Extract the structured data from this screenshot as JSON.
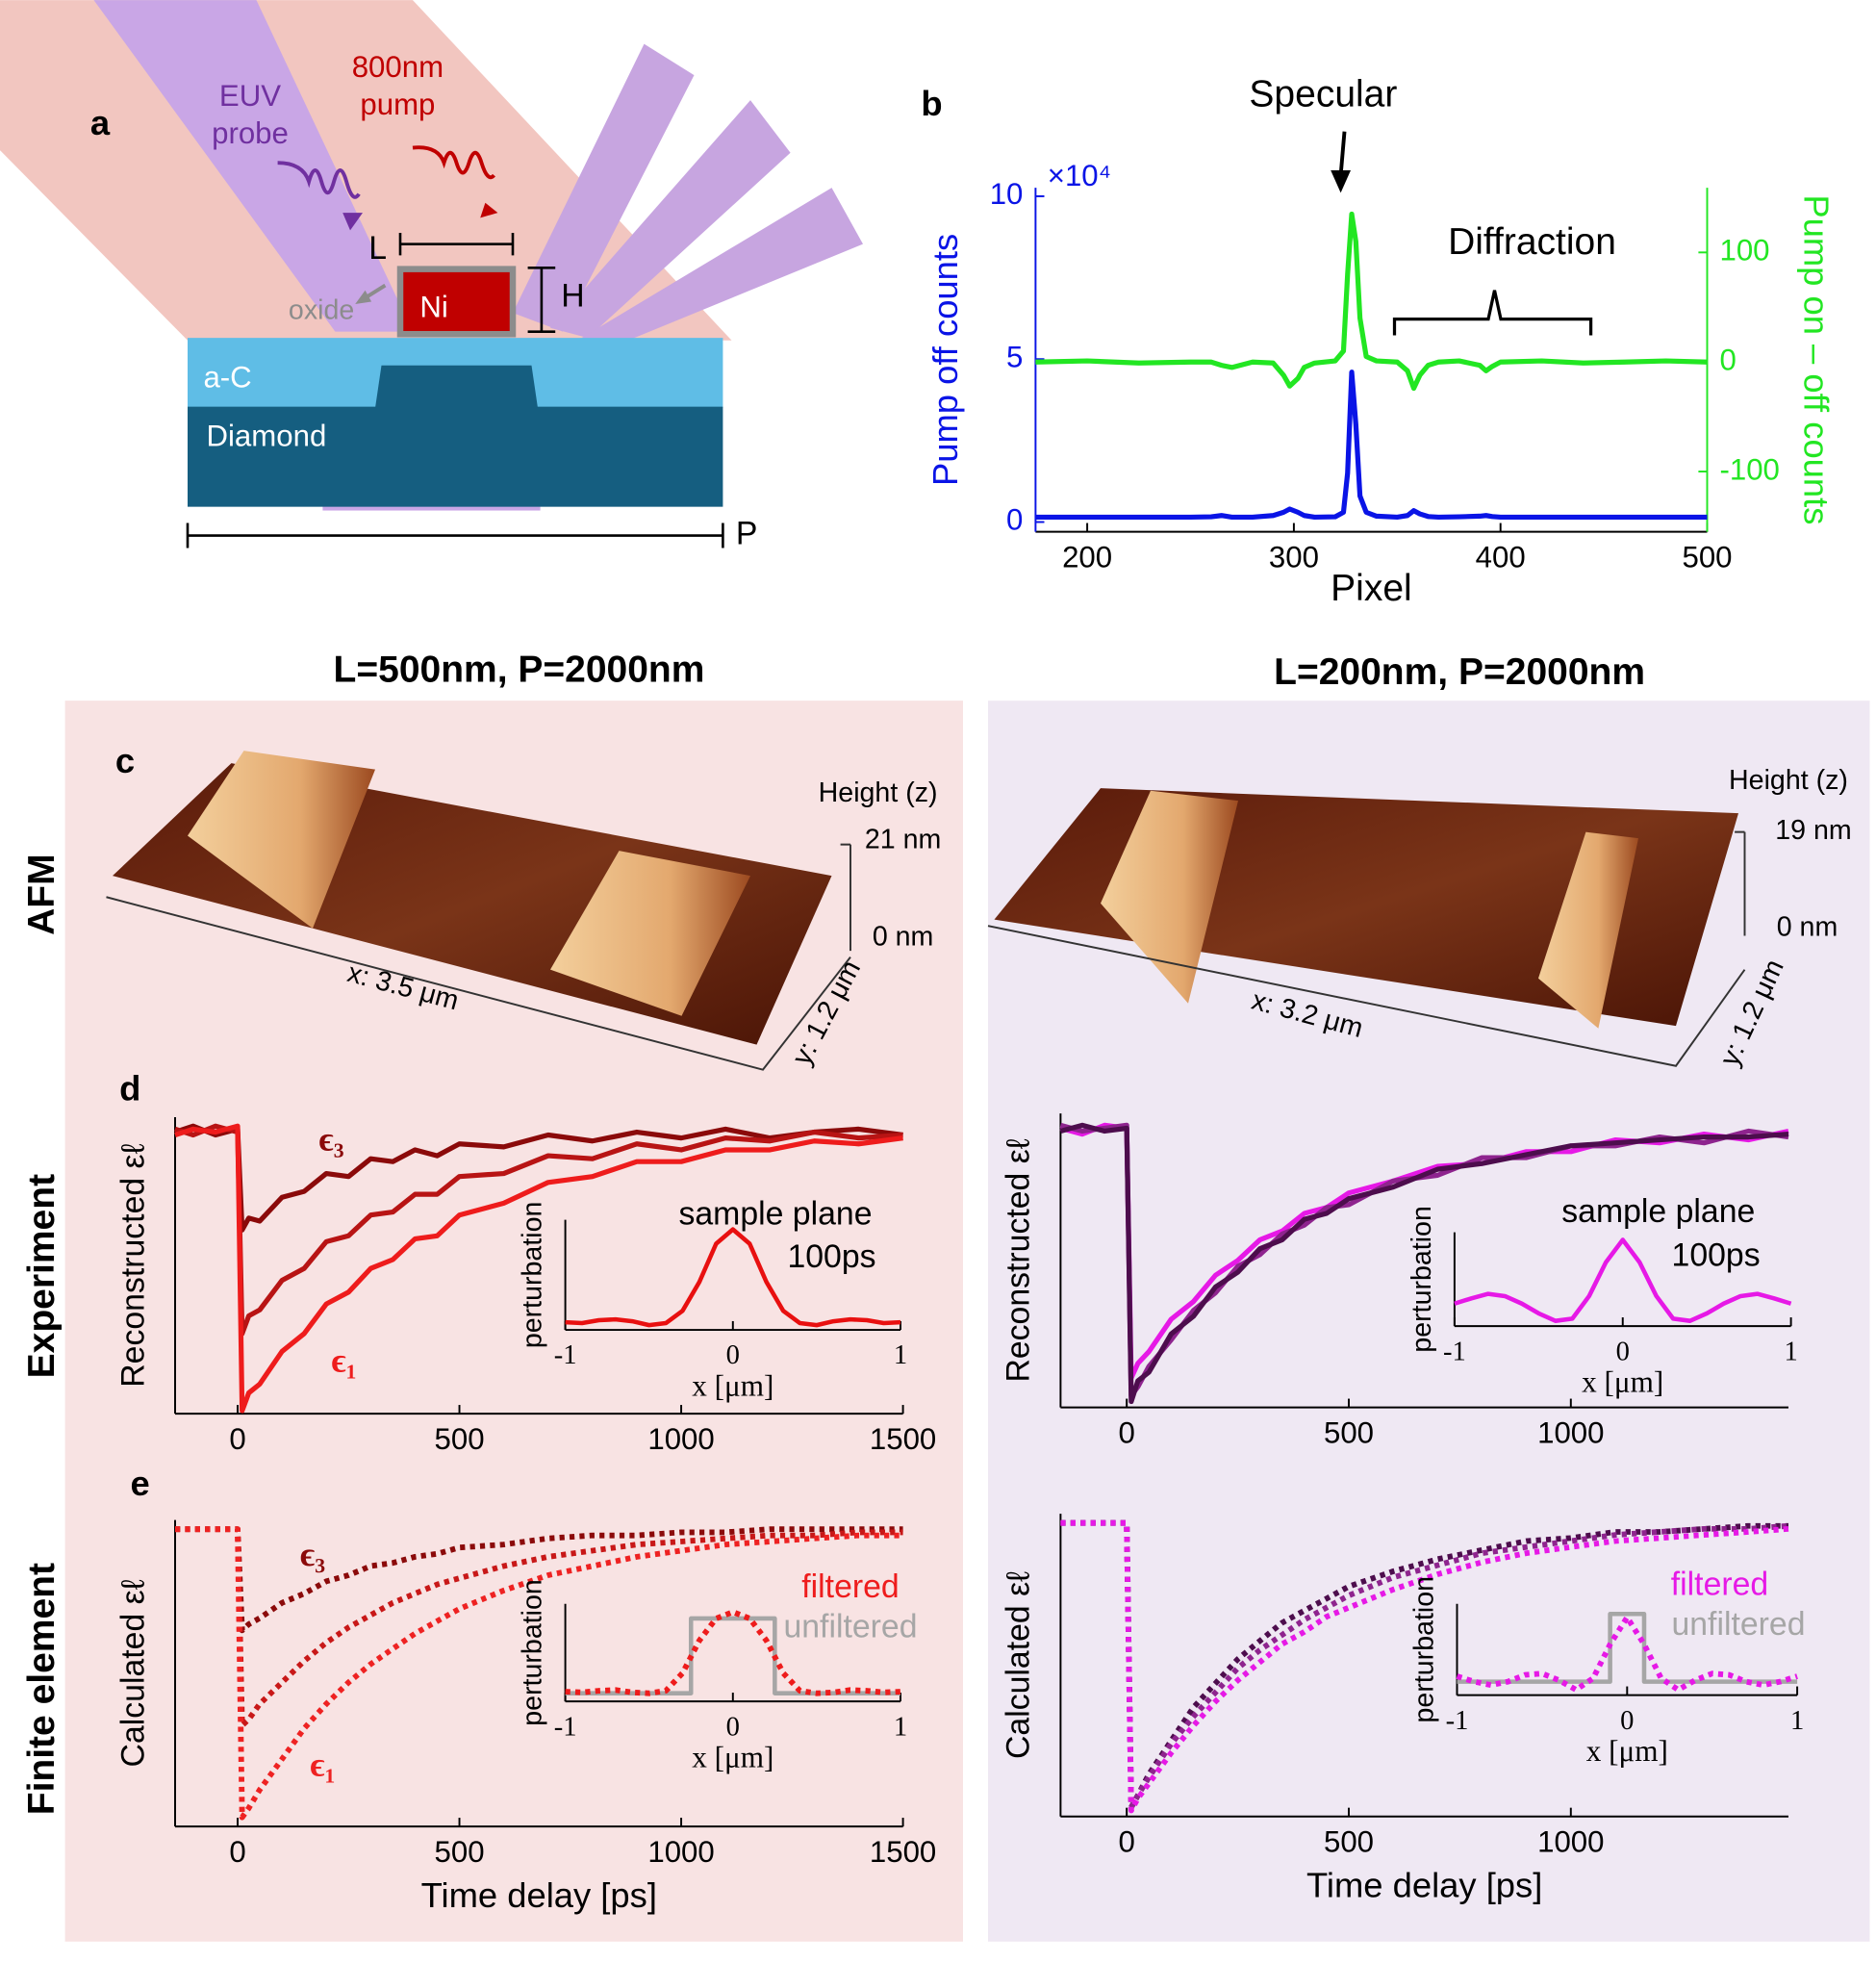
{
  "panels": [
    "a",
    "b",
    "c",
    "d",
    "e"
  ],
  "headers": [
    "L=500nm, P=2000nm",
    "L=200nm, P=2000nm"
  ],
  "row_labels": [
    "AFM",
    "Experiment",
    "Finite element"
  ],
  "diagram": {
    "probe": [
      "EUV",
      "probe"
    ],
    "pump": [
      "800nm",
      "pump"
    ],
    "L": "L",
    "H": "H",
    "Ni": "Ni",
    "oxide": "oxide",
    "aC": "a-C",
    "diamond": "Diamond",
    "P": "P"
  },
  "afm": [
    {
      "height_label": "Height (z)",
      "zmax": "21 nm",
      "zmin": "0 nm",
      "x_label": "x: 3.5 μm",
      "y_label": "y: 1.2 μm"
    },
    {
      "height_label": "Height (z)",
      "zmax": "19 nm",
      "zmin": "0 nm",
      "x_label": "x: 3.2 μm",
      "y_label": "y: 1.2 μm"
    }
  ],
  "chart_data": [
    {
      "type": "line",
      "xlabel": "Pixel",
      "ylabel": "Pump off counts",
      "y2label": "Pump on – off counts",
      "y_exponent": "×10⁴",
      "annotations": [
        "Specular",
        "Diffraction"
      ],
      "x": [
        175,
        200,
        225,
        250,
        260,
        265,
        270,
        280,
        290,
        295,
        298,
        302,
        305,
        310,
        320,
        324,
        326,
        328,
        330,
        332,
        335,
        340,
        350,
        355,
        358,
        361,
        365,
        370,
        380,
        390,
        393,
        396,
        400,
        420,
        440,
        460,
        480,
        500
      ],
      "series": [
        {
          "color": "#0a14e6",
          "values": [
            1500,
            1500,
            1500,
            1500,
            1600,
            2000,
            1500,
            1500,
            2000,
            3000,
            4000,
            3000,
            2000,
            1500,
            1600,
            3000,
            15000,
            46000,
            30000,
            8000,
            3000,
            1800,
            1500,
            2000,
            3500,
            2500,
            1700,
            1500,
            1600,
            1800,
            2000,
            1700,
            1500,
            1500,
            1500,
            1500,
            1500,
            1500
          ]
        },
        {
          "color": "#22e622",
          "axis": "y2",
          "values": [
            0,
            1,
            -1,
            0,
            0,
            -3,
            -5,
            0,
            -1,
            -12,
            -22,
            -15,
            -5,
            -1,
            1,
            10,
            80,
            135,
            110,
            40,
            5,
            1,
            0,
            -8,
            -24,
            -12,
            -3,
            0,
            1,
            -3,
            -8,
            -4,
            0,
            1,
            -1,
            0,
            1,
            0
          ]
        }
      ],
      "xlim": [
        175,
        500
      ],
      "xticks": [
        200,
        300,
        400,
        500
      ],
      "ylim": [
        -3000,
        102600
      ],
      "yticks": [
        0,
        {
          "value": 50000,
          "label": "5"
        },
        {
          "value": 100000,
          "label": "10"
        }
      ],
      "y2lim": [
        -155,
        159
      ],
      "y2ticks": [
        -100,
        0,
        100
      ]
    },
    {
      "type": "line",
      "ylabel": "Reconstructed εℓ",
      "x": [
        -141,
        -100,
        -50,
        0,
        10,
        25,
        50,
        100,
        150,
        200,
        250,
        300,
        350,
        400,
        450,
        500,
        600,
        700,
        800,
        900,
        1000,
        1100,
        1200,
        1300,
        1400,
        1500
      ],
      "series": [
        {
          "name": "ϵ₃",
          "color": "#8b0a0a",
          "values": [
            0.95,
            0.97,
            0.94,
            0.96,
            0.62,
            0.66,
            0.65,
            0.73,
            0.75,
            0.81,
            0.8,
            0.86,
            0.85,
            0.89,
            0.87,
            0.91,
            0.9,
            0.94,
            0.92,
            0.95,
            0.93,
            0.96,
            0.93,
            0.95,
            0.96,
            0.94
          ]
        },
        {
          "color": "#b81414",
          "values": [
            0.96,
            0.94,
            0.97,
            0.95,
            0.27,
            0.33,
            0.35,
            0.45,
            0.49,
            0.58,
            0.6,
            0.67,
            0.68,
            0.74,
            0.74,
            0.8,
            0.81,
            0.87,
            0.86,
            0.91,
            0.89,
            0.93,
            0.92,
            0.95,
            0.93,
            0.94
          ]
        },
        {
          "name": "ϵ₁",
          "color": "#ee1c1c",
          "values": [
            0.94,
            0.96,
            0.95,
            0.97,
            0.01,
            0.07,
            0.1,
            0.21,
            0.27,
            0.37,
            0.41,
            0.49,
            0.52,
            0.59,
            0.6,
            0.67,
            0.71,
            0.78,
            0.8,
            0.85,
            0.85,
            0.89,
            0.89,
            0.92,
            0.91,
            0.93
          ]
        }
      ],
      "xlim": [
        -141,
        1500
      ],
      "xticks": [
        0,
        500,
        1000,
        1500
      ],
      "ylim": [
        0,
        1
      ]
    },
    {
      "type": "line",
      "ylabel": "perturbation",
      "xlabel": "x [μm]",
      "annotations": [
        "sample plane",
        "100ps"
      ],
      "x": [
        -1,
        -0.9,
        -0.8,
        -0.7,
        -0.6,
        -0.5,
        -0.4,
        -0.3,
        -0.2,
        -0.1,
        0,
        0.1,
        0.2,
        0.3,
        0.4,
        0.5,
        0.6,
        0.7,
        0.8,
        0.9,
        1
      ],
      "series": [
        {
          "color": "#e81010",
          "values": [
            0.03,
            0.02,
            0.05,
            0.06,
            0.04,
            0,
            0.02,
            0.15,
            0.45,
            0.85,
            1,
            0.85,
            0.45,
            0.15,
            0.02,
            0,
            0.04,
            0.06,
            0.05,
            0.02,
            0.03
          ]
        }
      ],
      "xlim": [
        -1,
        1
      ],
      "xticks": [
        -1,
        0,
        1
      ],
      "ylim": [
        -0.05,
        1.1
      ]
    },
    {
      "type": "line",
      "ylabel": "Reconstructed εℓ",
      "x": [
        -149,
        -100,
        -50,
        0,
        10,
        25,
        50,
        100,
        150,
        200,
        250,
        300,
        350,
        400,
        450,
        500,
        600,
        700,
        800,
        900,
        1000,
        1100,
        1200,
        1300,
        1400,
        1490
      ],
      "series": [
        {
          "color": "#e619e6",
          "values": [
            0.95,
            0.93,
            0.96,
            0.95,
            0.1,
            0.15,
            0.19,
            0.3,
            0.36,
            0.45,
            0.5,
            0.57,
            0.6,
            0.66,
            0.68,
            0.73,
            0.77,
            0.82,
            0.83,
            0.87,
            0.87,
            0.91,
            0.9,
            0.93,
            0.91,
            0.94
          ]
        },
        {
          "color": "#8e248e",
          "values": [
            0.96,
            0.94,
            0.95,
            0.96,
            0.04,
            0.07,
            0.14,
            0.23,
            0.33,
            0.39,
            0.48,
            0.52,
            0.59,
            0.62,
            0.68,
            0.69,
            0.77,
            0.79,
            0.85,
            0.85,
            0.89,
            0.89,
            0.92,
            0.9,
            0.94,
            0.92
          ]
        },
        {
          "color": "#4d0d4d",
          "values": [
            0.94,
            0.96,
            0.94,
            0.95,
            0.02,
            0.09,
            0.12,
            0.25,
            0.31,
            0.41,
            0.46,
            0.54,
            0.57,
            0.64,
            0.66,
            0.71,
            0.75,
            0.81,
            0.83,
            0.86,
            0.89,
            0.9,
            0.91,
            0.92,
            0.92,
            0.93
          ]
        }
      ],
      "xlim": [
        -149,
        1490
      ],
      "xticks": [
        0,
        500,
        1000
      ],
      "ylim": [
        0,
        1
      ]
    },
    {
      "type": "line",
      "ylabel": "perturbation",
      "xlabel": "x [μm]",
      "annotations": [
        "sample plane",
        "100ps"
      ],
      "x": [
        -1,
        -0.9,
        -0.8,
        -0.7,
        -0.6,
        -0.5,
        -0.4,
        -0.3,
        -0.2,
        -0.1,
        0,
        0.1,
        0.2,
        0.3,
        0.4,
        0.5,
        0.6,
        0.7,
        0.8,
        0.9,
        1
      ],
      "series": [
        {
          "color": "#e619e6",
          "values": [
            0.15,
            0.22,
            0.28,
            0.25,
            0.15,
            0.02,
            -0.08,
            -0.05,
            0.25,
            0.7,
            1,
            0.7,
            0.25,
            -0.05,
            -0.08,
            0.02,
            0.15,
            0.25,
            0.28,
            0.22,
            0.15
          ]
        }
      ],
      "xlim": [
        -1,
        1
      ],
      "xticks": [
        -1,
        0,
        1
      ],
      "ylim": [
        -0.15,
        1.1
      ]
    },
    {
      "type": "line",
      "ylabel": "Calculated εℓ",
      "xlabel": "Time delay [ps]",
      "x": [
        -141,
        -100,
        -50,
        0,
        10,
        25,
        50,
        100,
        150,
        200,
        250,
        300,
        350,
        400,
        450,
        500,
        600,
        700,
        800,
        900,
        1000,
        1100,
        1200,
        1300,
        1400,
        1500
      ],
      "series": [
        {
          "name": "ϵ₃",
          "color": "#8b0a0a",
          "line_style": "dotted",
          "values": [
            0.97,
            0.97,
            0.97,
            0.97,
            0.64,
            0.66,
            0.68,
            0.73,
            0.76,
            0.8,
            0.82,
            0.85,
            0.86,
            0.88,
            0.89,
            0.91,
            0.92,
            0.94,
            0.95,
            0.95,
            0.96,
            0.96,
            0.97,
            0.97,
            0.97,
            0.97
          ]
        },
        {
          "color": "#c81818",
          "line_style": "dotted",
          "values": [
            0.97,
            0.97,
            0.97,
            0.97,
            0.33,
            0.35,
            0.4,
            0.47,
            0.54,
            0.6,
            0.65,
            0.69,
            0.73,
            0.76,
            0.79,
            0.81,
            0.85,
            0.88,
            0.9,
            0.92,
            0.93,
            0.94,
            0.95,
            0.95,
            0.96,
            0.96
          ]
        },
        {
          "name": "ϵ₁",
          "color": "#ee2222",
          "line_style": "dotted",
          "values": [
            0.97,
            0.97,
            0.97,
            0.97,
            0.03,
            0.06,
            0.12,
            0.22,
            0.32,
            0.4,
            0.47,
            0.53,
            0.58,
            0.63,
            0.67,
            0.71,
            0.77,
            0.82,
            0.85,
            0.88,
            0.9,
            0.92,
            0.93,
            0.94,
            0.95,
            0.95
          ]
        }
      ],
      "xlim": [
        -141,
        1500
      ],
      "xticks": [
        0,
        500,
        1000,
        1500
      ],
      "ylim": [
        0,
        1
      ]
    },
    {
      "type": "line",
      "ylabel": "perturbation",
      "xlabel": "x [μm]",
      "x": [
        -1,
        -0.9,
        -0.8,
        -0.7,
        -0.6,
        -0.5,
        -0.4,
        -0.3,
        -0.25,
        -0.25,
        -0.2,
        -0.1,
        0,
        0.1,
        0.2,
        0.25,
        0.25,
        0.3,
        0.4,
        0.5,
        0.6,
        0.7,
        0.8,
        0.9,
        1
      ],
      "series": [
        {
          "name": "unfiltered",
          "color": "#a6a6a6",
          "values": [
            0,
            0,
            0,
            0,
            0,
            0,
            0,
            0,
            0,
            0.92,
            0.92,
            0.92,
            0.92,
            0.92,
            0.92,
            0.92,
            0,
            0,
            0,
            0,
            0,
            0,
            0,
            0,
            0
          ]
        },
        {
          "name": "filtered",
          "color": "#ee1c1c",
          "line_style": "dotted",
          "values": [
            0.02,
            0.01,
            0.03,
            0.04,
            0.01,
            0,
            0.03,
            0.25,
            0.45,
            0.45,
            0.65,
            0.92,
            1,
            0.92,
            0.65,
            0.45,
            0.45,
            0.25,
            0.03,
            0,
            0.01,
            0.04,
            0.03,
            0.01,
            0.02
          ]
        }
      ],
      "xlim": [
        -1,
        1
      ],
      "xticks": [
        -1,
        0,
        1
      ],
      "ylim": [
        -0.1,
        1.1
      ]
    },
    {
      "type": "line",
      "ylabel": "Calculated εℓ",
      "xlabel": "Time delay [ps]",
      "x": [
        -149,
        -100,
        -50,
        0,
        10,
        25,
        50,
        100,
        150,
        200,
        250,
        300,
        350,
        400,
        450,
        500,
        600,
        700,
        800,
        900,
        1000,
        1100,
        1200,
        1300,
        1400,
        1490
      ],
      "series": [
        {
          "color": "#4d0d4d",
          "line_style": "dotted",
          "values": [
            0.97,
            0.97,
            0.97,
            0.97,
            0.03,
            0.07,
            0.14,
            0.25,
            0.36,
            0.44,
            0.52,
            0.58,
            0.64,
            0.68,
            0.72,
            0.76,
            0.81,
            0.85,
            0.88,
            0.91,
            0.92,
            0.94,
            0.94,
            0.95,
            0.96,
            0.96
          ]
        },
        {
          "color": "#8e248e",
          "line_style": "dotted",
          "values": [
            0.97,
            0.97,
            0.97,
            0.97,
            0.03,
            0.07,
            0.13,
            0.24,
            0.33,
            0.41,
            0.49,
            0.55,
            0.6,
            0.65,
            0.69,
            0.73,
            0.79,
            0.83,
            0.87,
            0.89,
            0.91,
            0.93,
            0.94,
            0.95,
            0.95,
            0.96
          ]
        },
        {
          "color": "#e619e6",
          "line_style": "dotted",
          "values": [
            0.97,
            0.97,
            0.97,
            0.97,
            0.02,
            0.06,
            0.11,
            0.21,
            0.3,
            0.38,
            0.45,
            0.51,
            0.57,
            0.61,
            0.66,
            0.69,
            0.75,
            0.8,
            0.84,
            0.87,
            0.89,
            0.91,
            0.92,
            0.93,
            0.94,
            0.95
          ]
        }
      ],
      "xlim": [
        -149,
        1490
      ],
      "xticks": [
        0,
        500,
        1000
      ],
      "ylim": [
        0,
        1
      ]
    },
    {
      "type": "line",
      "ylabel": "perturbation",
      "xlabel": "x [μm]",
      "x": [
        -1,
        -0.9,
        -0.8,
        -0.7,
        -0.6,
        -0.5,
        -0.4,
        -0.3,
        -0.2,
        -0.1,
        -0.1,
        0,
        0.1,
        0.1,
        0.2,
        0.3,
        0.4,
        0.5,
        0.6,
        0.7,
        0.8,
        0.9,
        1
      ],
      "series": [
        {
          "name": "unfiltered",
          "color": "#a6a6a6",
          "values": [
            0,
            0,
            0,
            0,
            0,
            0,
            0,
            0,
            0,
            0,
            1,
            1,
            1,
            0,
            0,
            0,
            0,
            0,
            0,
            0,
            0,
            0,
            0
          ]
        },
        {
          "name": "filtered",
          "color": "#e619e6",
          "line_style": "dotted",
          "values": [
            0.08,
            0,
            -0.05,
            0,
            0.1,
            0.12,
            0.02,
            -0.12,
            0.05,
            0.55,
            0.55,
            0.95,
            0.55,
            0.55,
            0.05,
            -0.12,
            0.02,
            0.12,
            0.1,
            0,
            -0.05,
            0,
            0.08
          ]
        }
      ],
      "xlim": [
        -1,
        1
      ],
      "xticks": [
        -1,
        0,
        1
      ],
      "ylim": [
        -0.2,
        1.15
      ]
    }
  ]
}
